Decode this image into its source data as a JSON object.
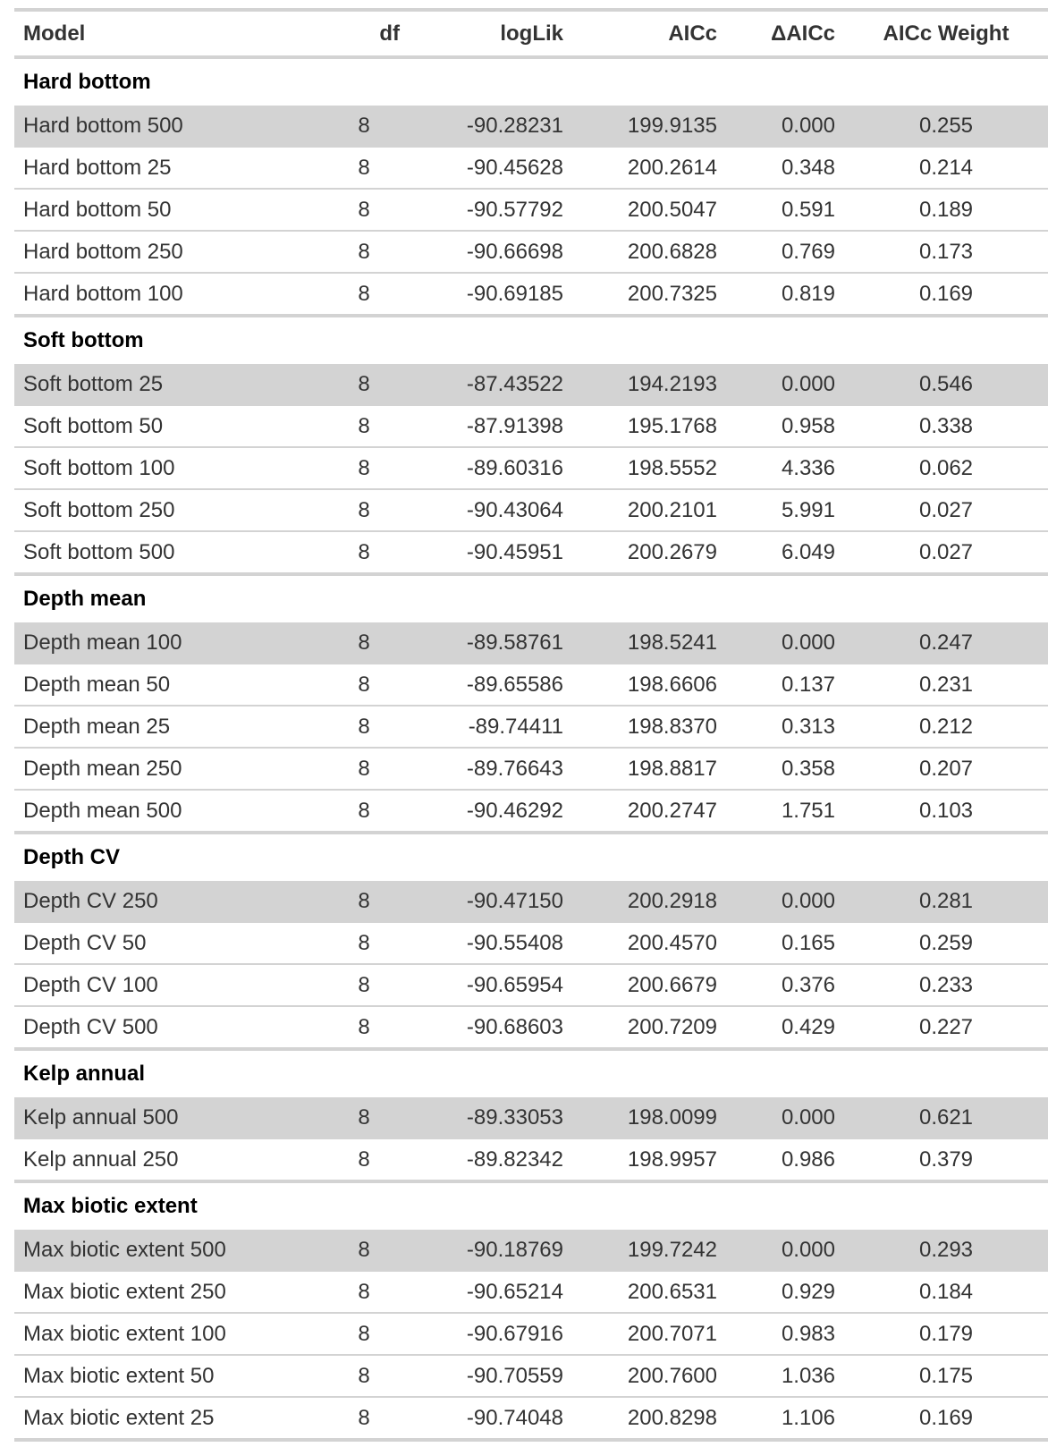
{
  "table": {
    "headers": {
      "model": "Model",
      "df": "df",
      "loglik": "logLik",
      "aicc": "AICc",
      "delta_aicc": "ΔAICc",
      "weight": "AICc Weight"
    },
    "highlight_color": "#d3d3d3",
    "groups": [
      {
        "name": "Hard bottom",
        "rows": [
          [
            "Hard bottom 500",
            "8",
            "-90.28231",
            "199.9135",
            "0.000",
            "0.255"
          ],
          [
            "Hard bottom 25",
            "8",
            "-90.45628",
            "200.2614",
            "0.348",
            "0.214"
          ],
          [
            "Hard bottom 50",
            "8",
            "-90.57792",
            "200.5047",
            "0.591",
            "0.189"
          ],
          [
            "Hard bottom 250",
            "8",
            "-90.66698",
            "200.6828",
            "0.769",
            "0.173"
          ],
          [
            "Hard bottom 100",
            "8",
            "-90.69185",
            "200.7325",
            "0.819",
            "0.169"
          ]
        ]
      },
      {
        "name": "Soft bottom",
        "rows": [
          [
            "Soft bottom 25",
            "8",
            "-87.43522",
            "194.2193",
            "0.000",
            "0.546"
          ],
          [
            "Soft bottom 50",
            "8",
            "-87.91398",
            "195.1768",
            "0.958",
            "0.338"
          ],
          [
            "Soft bottom 100",
            "8",
            "-89.60316",
            "198.5552",
            "4.336",
            "0.062"
          ],
          [
            "Soft bottom 250",
            "8",
            "-90.43064",
            "200.2101",
            "5.991",
            "0.027"
          ],
          [
            "Soft bottom 500",
            "8",
            "-90.45951",
            "200.2679",
            "6.049",
            "0.027"
          ]
        ]
      },
      {
        "name": "Depth mean",
        "rows": [
          [
            "Depth mean 100",
            "8",
            "-89.58761",
            "198.5241",
            "0.000",
            "0.247"
          ],
          [
            "Depth mean 50",
            "8",
            "-89.65586",
            "198.6606",
            "0.137",
            "0.231"
          ],
          [
            "Depth mean 25",
            "8",
            "-89.74411",
            "198.8370",
            "0.313",
            "0.212"
          ],
          [
            "Depth mean 250",
            "8",
            "-89.76643",
            "198.8817",
            "0.358",
            "0.207"
          ],
          [
            "Depth mean 500",
            "8",
            "-90.46292",
            "200.2747",
            "1.751",
            "0.103"
          ]
        ]
      },
      {
        "name": "Depth CV",
        "rows": [
          [
            "Depth CV 250",
            "8",
            "-90.47150",
            "200.2918",
            "0.000",
            "0.281"
          ],
          [
            "Depth CV 50",
            "8",
            "-90.55408",
            "200.4570",
            "0.165",
            "0.259"
          ],
          [
            "Depth CV 100",
            "8",
            "-90.65954",
            "200.6679",
            "0.376",
            "0.233"
          ],
          [
            "Depth CV 500",
            "8",
            "-90.68603",
            "200.7209",
            "0.429",
            "0.227"
          ]
        ]
      },
      {
        "name": "Kelp annual",
        "rows": [
          [
            "Kelp annual 500",
            "8",
            "-89.33053",
            "198.0099",
            "0.000",
            "0.621"
          ],
          [
            "Kelp annual 250",
            "8",
            "-89.82342",
            "198.9957",
            "0.986",
            "0.379"
          ]
        ]
      },
      {
        "name": "Max biotic extent",
        "rows": [
          [
            "Max biotic extent 500",
            "8",
            "-90.18769",
            "199.7242",
            "0.000",
            "0.293"
          ],
          [
            "Max biotic extent 250",
            "8",
            "-90.65214",
            "200.6531",
            "0.929",
            "0.184"
          ],
          [
            "Max biotic extent 100",
            "8",
            "-90.67916",
            "200.7071",
            "0.983",
            "0.179"
          ],
          [
            "Max biotic extent 50",
            "8",
            "-90.70559",
            "200.7600",
            "1.036",
            "0.175"
          ],
          [
            "Max biotic extent 25",
            "8",
            "-90.74048",
            "200.8298",
            "1.106",
            "0.169"
          ]
        ]
      }
    ]
  }
}
